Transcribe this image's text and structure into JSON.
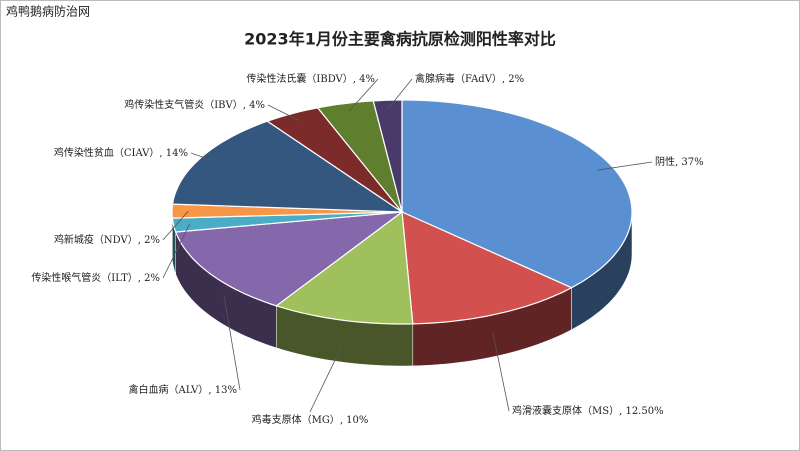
{
  "watermark": "鸡鸭鹅病防治网",
  "chart_data": {
    "type": "pie3d",
    "title": "2023年1月份主要禽病抗原检测阳性率对比",
    "categories": [
      "阴性",
      "鸡滑液囊支原体（MS）",
      "鸡毒支原体（MG）",
      "禽白血病（ALV）",
      "传染性喉气管炎（ILT）",
      "鸡新城疫（NDV）",
      "鸡传染性贫血（CIAV）",
      "鸡传染性支气管炎（IBV）",
      "传染性法氏囊（IBDV）",
      "禽腺病毒（FAdV）"
    ],
    "values": [
      37,
      12.5,
      10,
      13,
      2,
      2,
      14,
      4,
      4,
      2
    ],
    "value_labels": [
      ", 37%",
      ", 12.50%",
      ", 10%",
      ", 13%",
      ", 2%",
      ", 2%",
      ", 14%",
      ", 4%",
      ", 4%",
      ", 2%"
    ],
    "colors": [
      "#5a8fd2",
      "#d2504d",
      "#9fc05c",
      "#8468ab",
      "#4bacc6",
      "#f79646",
      "#34577f",
      "#7b2c2a",
      "#5f7f2f",
      "#4a3a6a"
    ]
  }
}
